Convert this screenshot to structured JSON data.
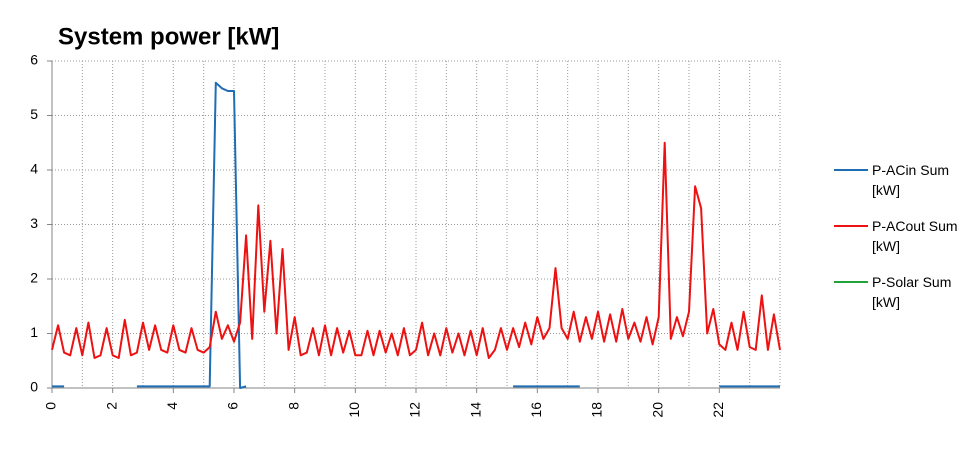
{
  "chart_data": {
    "type": "line",
    "title": "System power [kW]",
    "x": [
      0,
      0.2,
      0.4,
      0.6,
      0.8,
      1,
      1.2,
      1.4,
      1.6,
      1.8,
      2,
      2.2,
      2.4,
      2.6,
      2.8,
      3,
      3.2,
      3.4,
      3.6,
      3.8,
      4,
      4.2,
      4.4,
      4.6,
      4.8,
      5,
      5.2,
      5.4,
      5.6,
      5.8,
      6,
      6.2,
      6.4,
      6.6,
      6.8,
      7,
      7.2,
      7.4,
      7.6,
      7.8,
      8,
      8.2,
      8.4,
      8.6,
      8.8,
      9,
      9.2,
      9.4,
      9.6,
      9.8,
      10,
      10.2,
      10.4,
      10.6,
      10.8,
      11,
      11.2,
      11.4,
      11.6,
      11.8,
      12,
      12.2,
      12.4,
      12.6,
      12.8,
      13,
      13.2,
      13.4,
      13.6,
      13.8,
      14,
      14.2,
      14.4,
      14.6,
      14.8,
      15,
      15.2,
      15.4,
      15.6,
      15.8,
      16,
      16.2,
      16.4,
      16.6,
      16.8,
      17,
      17.2,
      17.4,
      17.6,
      17.8,
      18,
      18.2,
      18.4,
      18.6,
      18.8,
      19,
      19.2,
      19.4,
      19.6,
      19.8,
      20,
      20.2,
      20.4,
      20.6,
      20.8,
      21,
      21.2,
      21.4,
      21.6,
      21.8,
      22,
      22.2,
      22.4,
      22.6,
      22.8,
      23,
      23.2,
      23.4,
      23.6,
      23.8,
      24
    ],
    "series": [
      {
        "name": "P-ACin Sum [kW]",
        "color": "#1f6db4",
        "values": [
          0.03,
          0.03,
          0.03,
          null,
          null,
          null,
          null,
          null,
          null,
          null,
          null,
          null,
          null,
          null,
          0.03,
          0.03,
          0.03,
          0.03,
          0.03,
          0.03,
          0.03,
          0.03,
          0.03,
          0.03,
          0.03,
          0.03,
          0.03,
          5.6,
          5.5,
          5.45,
          5.45,
          0,
          0.03,
          null,
          null,
          null,
          null,
          null,
          null,
          null,
          null,
          null,
          null,
          null,
          null,
          null,
          null,
          null,
          null,
          null,
          null,
          null,
          null,
          null,
          null,
          null,
          null,
          null,
          null,
          null,
          null,
          null,
          null,
          null,
          null,
          null,
          null,
          null,
          null,
          null,
          null,
          null,
          null,
          null,
          null,
          null,
          0.03,
          0.03,
          0.03,
          0.03,
          0.03,
          0.03,
          0.03,
          0.03,
          0.03,
          0.03,
          0.03,
          0.03,
          null,
          null,
          null,
          null,
          null,
          null,
          null,
          null,
          null,
          null,
          null,
          null,
          null,
          null,
          null,
          null,
          null,
          null,
          null,
          null,
          null,
          null,
          0.03,
          0.03,
          0.03,
          0.03,
          0.03,
          0.03,
          0.03,
          0.03,
          0.03,
          0.03,
          0.03
        ]
      },
      {
        "name": "P-ACout Sum [kW]",
        "color": "#ee1111",
        "values": [
          0.7,
          1.15,
          0.65,
          0.6,
          1.1,
          0.6,
          1.2,
          0.55,
          0.6,
          1.1,
          0.6,
          0.55,
          1.25,
          0.6,
          0.65,
          1.2,
          0.7,
          1.15,
          0.7,
          0.65,
          1.15,
          0.7,
          0.65,
          1.1,
          0.7,
          0.65,
          0.75,
          1.4,
          0.9,
          1.15,
          0.85,
          1.2,
          2.8,
          0.9,
          3.35,
          1.4,
          2.7,
          1.0,
          2.55,
          0.7,
          1.3,
          0.6,
          0.65,
          1.1,
          0.6,
          1.15,
          0.6,
          1.1,
          0.65,
          1.05,
          0.6,
          0.6,
          1.05,
          0.6,
          1.05,
          0.65,
          1.0,
          0.6,
          1.1,
          0.6,
          0.7,
          1.2,
          0.6,
          1.0,
          0.6,
          1.1,
          0.65,
          1.0,
          0.6,
          1.05,
          0.6,
          1.1,
          0.55,
          0.7,
          1.1,
          0.7,
          1.1,
          0.75,
          1.2,
          0.8,
          1.3,
          0.9,
          1.1,
          2.2,
          1.1,
          0.9,
          1.4,
          0.85,
          1.3,
          0.9,
          1.4,
          0.85,
          1.35,
          0.85,
          1.45,
          0.9,
          1.2,
          0.85,
          1.3,
          0.8,
          1.3,
          4.5,
          0.9,
          1.3,
          0.95,
          1.4,
          3.7,
          3.3,
          1.0,
          1.45,
          0.8,
          0.7,
          1.2,
          0.7,
          1.4,
          0.75,
          0.7,
          1.7,
          0.7,
          1.35,
          0.7
        ]
      },
      {
        "name": "P-Solar Sum [kW]",
        "color": "#22a33a",
        "values": [
          null,
          null,
          null,
          null,
          null,
          null,
          null,
          null,
          null,
          null,
          null,
          null,
          null,
          null,
          null,
          null,
          null,
          null,
          null,
          null,
          null,
          null,
          null,
          null,
          null,
          null,
          null,
          null,
          null,
          null,
          null,
          null,
          null,
          null,
          null,
          null,
          null,
          null,
          null,
          null,
          null,
          null,
          null,
          null,
          null,
          null,
          null,
          null,
          null,
          null,
          null,
          null,
          null,
          null,
          null,
          null,
          null,
          null,
          null,
          null,
          null,
          null,
          null,
          null,
          null,
          null,
          null,
          null,
          null,
          null,
          null,
          null,
          null,
          null,
          null,
          null,
          null,
          null,
          null,
          null,
          null,
          null,
          null,
          null,
          null,
          null,
          null,
          null,
          null,
          null,
          null,
          null,
          null,
          null,
          null,
          null,
          null,
          null,
          null,
          null,
          null,
          null,
          null,
          null,
          null,
          null,
          null,
          null,
          null,
          null,
          null,
          null,
          null,
          null,
          null,
          null,
          null,
          null,
          null,
          null,
          null
        ]
      }
    ],
    "xlim": [
      0,
      24
    ],
    "xticks": [
      0,
      2,
      4,
      6,
      8,
      10,
      12,
      14,
      16,
      18,
      20,
      22
    ],
    "ylim": [
      0,
      6
    ],
    "yticks": [
      0,
      1,
      2,
      3,
      4,
      5,
      6
    ],
    "grid": true,
    "x_minor_grid": true,
    "legend": "right"
  }
}
